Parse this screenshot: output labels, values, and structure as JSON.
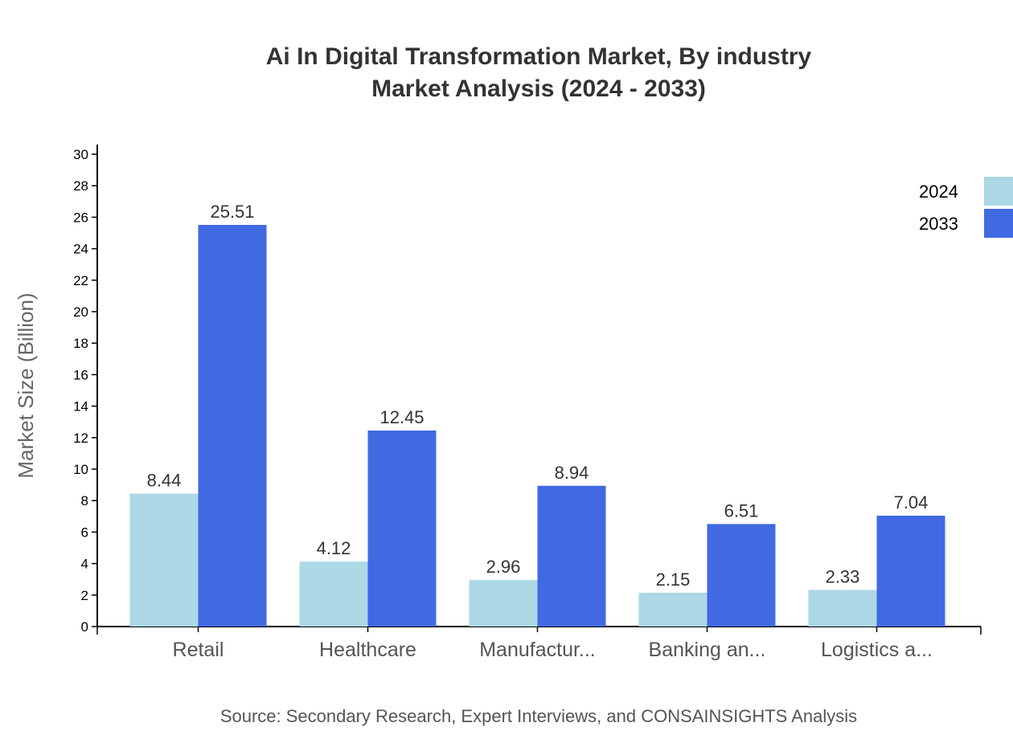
{
  "chart_data": {
    "type": "bar",
    "title": "Ai In Digital Transformation Market, By industry",
    "subtitle": "Market Analysis (2024 - 2033)",
    "xlabel": "",
    "ylabel": "Market Size (Billion)",
    "ylim": [
      0,
      30
    ],
    "yticks": [
      0,
      2,
      4,
      6,
      8,
      10,
      12,
      14,
      16,
      18,
      20,
      22,
      24,
      26,
      28,
      30
    ],
    "categories": [
      "Retail",
      "Healthcare",
      "Manufactur...",
      "Banking an...",
      "Logistics a..."
    ],
    "series": [
      {
        "name": "2024",
        "color": "#add8e6",
        "values": [
          8.44,
          4.12,
          2.96,
          2.15,
          2.33
        ]
      },
      {
        "name": "2033",
        "color": "#4169e1",
        "values": [
          25.51,
          12.45,
          8.94,
          6.51,
          7.04
        ]
      }
    ],
    "grid": false,
    "legend": "top-right",
    "source": "Source: Secondary Research, Expert Interviews, and CONSAINSIGHTS Analysis"
  }
}
